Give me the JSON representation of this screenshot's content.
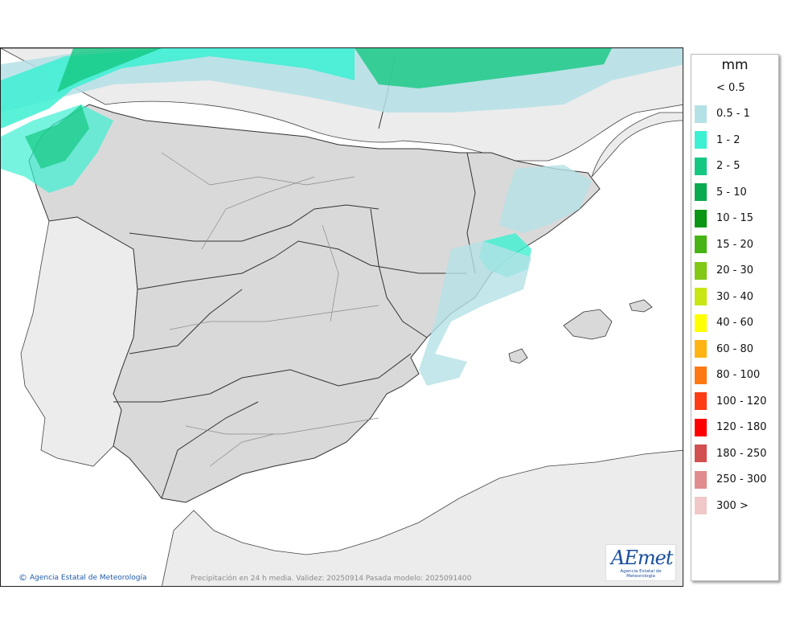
{
  "legend": {
    "unit": "mm",
    "items": [
      {
        "label": "< 0.5",
        "color": "#ffffff"
      },
      {
        "label": "0.5 - 1",
        "color": "#b4e1e6"
      },
      {
        "label": "1 - 2",
        "color": "#3cf0d2"
      },
      {
        "label": "2 - 5",
        "color": "#14c882"
      },
      {
        "label": "5 - 10",
        "color": "#0aaa50"
      },
      {
        "label": "10 - 15",
        "color": "#0a9614"
      },
      {
        "label": "15 - 20",
        "color": "#46b414"
      },
      {
        "label": "20 - 30",
        "color": "#82c814"
      },
      {
        "label": "30 - 40",
        "color": "#c8e614"
      },
      {
        "label": "40 - 60",
        "color": "#ffff00"
      },
      {
        "label": "60 - 80",
        "color": "#ffb414"
      },
      {
        "label": "80 - 100",
        "color": "#ff7814"
      },
      {
        "label": "100 - 120",
        "color": "#ff3c14"
      },
      {
        "label": "120 - 180",
        "color": "#ff0000"
      },
      {
        "label": "180 - 250",
        "color": "#d25050"
      },
      {
        "label": "250 - 300",
        "color": "#e18c8c"
      },
      {
        "label": "300 >",
        "color": "#f0c8c8"
      }
    ]
  },
  "footer": {
    "copyright_symbol": "©",
    "credit": "Agencia Estatal de Meteorología",
    "validity": "Precipitación en 24 h media. Validez: 20250914 Pasada modelo: 2025091400"
  },
  "logo": {
    "wordmark": "AEmet",
    "subtitle": "Agencia Estatal de Meteorología"
  },
  "map": {
    "land_color": "#d9d9d9",
    "foreign_land_color": "#ececec",
    "sea_color": "#ffffff"
  }
}
